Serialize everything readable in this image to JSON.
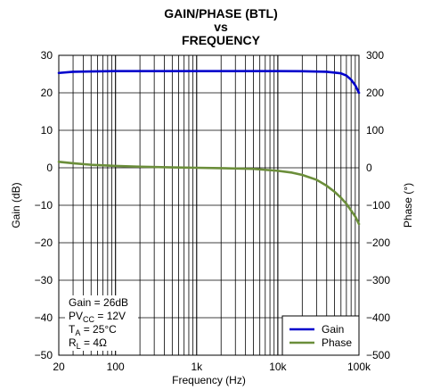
{
  "chart_data": {
    "type": "line",
    "title_lines": [
      "GAIN/PHASE (BTL)",
      "vs",
      "FREQUENCY"
    ],
    "xlabel": "Frequency (Hz)",
    "ylabel_left": "Gain (dB)",
    "ylabel_right": "Phase (°)",
    "x_scale": "log",
    "xlim": [
      20,
      100000
    ],
    "x_ticks": [
      {
        "value": 20,
        "label": "20"
      },
      {
        "value": 100,
        "label": "100"
      },
      {
        "value": 1000,
        "label": "1k"
      },
      {
        "value": 10000,
        "label": "10k"
      },
      {
        "value": 100000,
        "label": "100k"
      }
    ],
    "ylim_left": [
      -50,
      30
    ],
    "y_ticks_left": [
      30,
      20,
      10,
      0,
      -10,
      -20,
      -30,
      -40,
      -50
    ],
    "y_tick_labels_left": [
      "30",
      "20",
      "10",
      "0",
      "−10",
      "−20",
      "−30",
      "−40",
      "−50"
    ],
    "ylim_right": [
      -500,
      300
    ],
    "y_ticks_right": [
      300,
      200,
      100,
      0,
      -100,
      -200,
      -300,
      -400,
      -500
    ],
    "y_tick_labels_right": [
      "300",
      "200",
      "100",
      "0",
      "−100",
      "−200",
      "−300",
      "−400",
      "−500"
    ],
    "grid": true,
    "legend_placement": "bottom-right",
    "series": [
      {
        "name": "Gain",
        "axis": "left",
        "color": "#0000cc",
        "x": [
          20,
          30,
          50,
          100,
          200,
          500,
          1000,
          2000,
          5000,
          10000,
          20000,
          40000,
          60000,
          70000,
          80000,
          90000,
          100000
        ],
        "y": [
          25.3,
          25.6,
          25.7,
          25.8,
          25.8,
          25.8,
          25.8,
          25.8,
          25.8,
          25.8,
          25.75,
          25.6,
          25.2,
          24.6,
          23.5,
          22.0,
          20.0
        ]
      },
      {
        "name": "Phase",
        "axis": "right",
        "color": "#6b8e3a",
        "x": [
          20,
          30,
          50,
          100,
          200,
          500,
          1000,
          2000,
          5000,
          10000,
          15000,
          20000,
          30000,
          40000,
          50000,
          60000,
          70000,
          80000,
          90000,
          100000
        ],
        "y": [
          16,
          12,
          8,
          5,
          3,
          1,
          0,
          -1,
          -3,
          -8,
          -13,
          -19,
          -32,
          -48,
          -64,
          -80,
          -96,
          -114,
          -130,
          -150
        ]
      }
    ],
    "annotations": [
      {
        "main": "Gain = 26dB",
        "sub": "",
        "tail": ""
      },
      {
        "main": "PV",
        "sub": "CC",
        "tail": " = 12V"
      },
      {
        "main": "T",
        "sub": "A",
        "tail": " = 25°C"
      },
      {
        "main": "R",
        "sub": "L",
        "tail": " = 4Ω"
      }
    ]
  }
}
